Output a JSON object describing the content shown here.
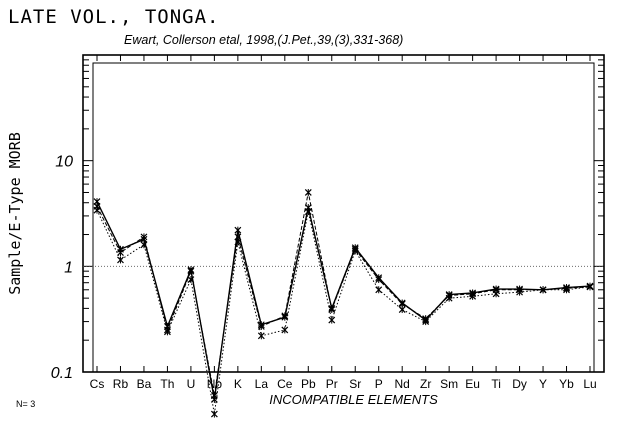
{
  "chart_data": {
    "type": "line",
    "title": "LATE VOL., TONGA.",
    "subtitle": "Ewart, Collerson etal, 1998,(J.Pet.,39,(3),331-368)",
    "xlabel": "INCOMPATIBLE ELEMENTS",
    "ylabel": "Sample/E-Type MORB",
    "yscale": "log",
    "ylim": [
      0.1,
      100
    ],
    "yticks": [
      {
        "value": 0.1,
        "label": "0.1"
      },
      {
        "value": 1,
        "label": "1"
      },
      {
        "value": 10,
        "label": "10"
      }
    ],
    "reference_line": 1,
    "categories": [
      "Cs",
      "Rb",
      "Ba",
      "Th",
      "U",
      "Nb",
      "K",
      "La",
      "Ce",
      "Pb",
      "Pr",
      "Sr",
      "P",
      "Nd",
      "Zr",
      "Sm",
      "Eu",
      "Ti",
      "Dy",
      "Y",
      "Yb",
      "Lu"
    ],
    "series": [
      {
        "style": "solid",
        "values": [
          4.1,
          1.45,
          1.8,
          0.27,
          0.93,
          0.055,
          2.2,
          0.28,
          0.33,
          3.6,
          0.4,
          1.5,
          0.78,
          0.45,
          0.31,
          0.54,
          0.56,
          0.61,
          0.61,
          0.6,
          0.63,
          0.65
        ]
      },
      {
        "style": "dashed",
        "values": [
          3.7,
          1.35,
          1.9,
          0.25,
          0.9,
          0.06,
          1.9,
          0.27,
          0.34,
          5.0,
          0.39,
          1.45,
          0.75,
          0.44,
          0.32,
          0.53,
          0.55,
          0.6,
          0.6,
          0.6,
          0.62,
          0.64
        ]
      },
      {
        "style": "dotted",
        "values": [
          3.4,
          1.15,
          1.6,
          0.24,
          0.75,
          0.04,
          1.7,
          0.22,
          0.25,
          3.3,
          0.31,
          1.4,
          0.6,
          0.39,
          0.3,
          0.5,
          0.52,
          0.55,
          0.57,
          0.6,
          0.6,
          0.64
        ]
      }
    ],
    "legend": "none",
    "grid": false
  },
  "note": "N= 3"
}
